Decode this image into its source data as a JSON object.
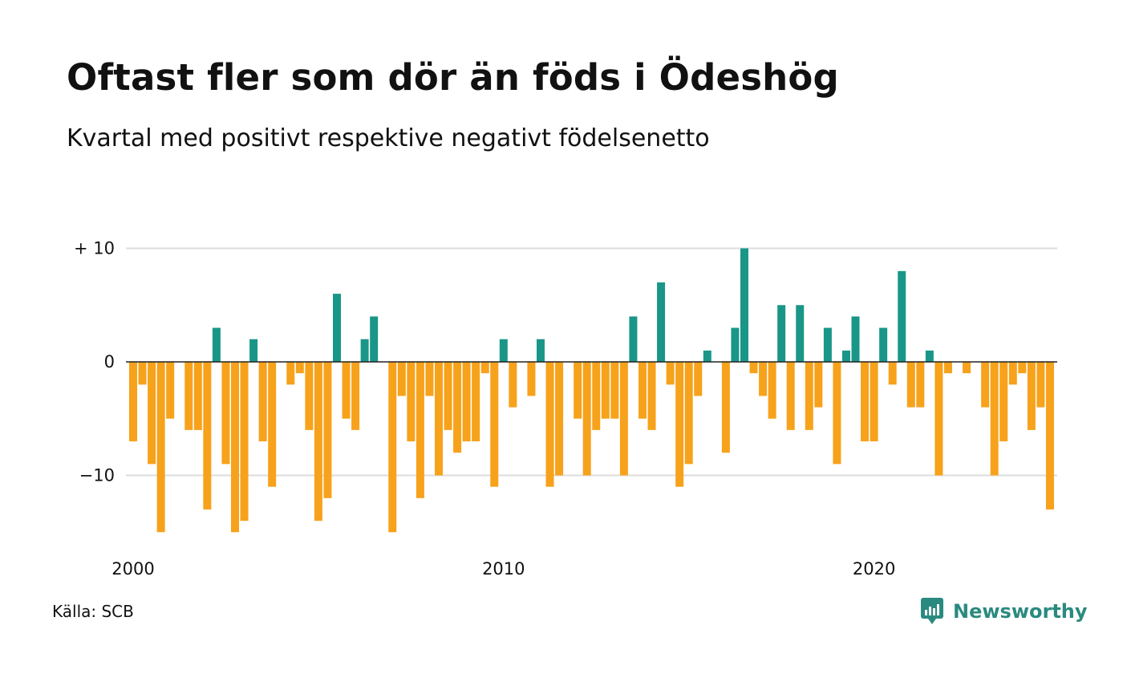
{
  "header": {
    "title": "Oftast fler som dör än föds i Ödeshög",
    "subtitle": "Kvartal med positivt respektive negativt födelsenetto"
  },
  "footer": {
    "source": "Källa: SCB",
    "brand": "Newsworthy"
  },
  "colors": {
    "positive": "#1a9688",
    "negative": "#f7a21b",
    "grid": "#dddddd",
    "zero_line": "#222222",
    "brand": "#2a8a80"
  },
  "chart_data": {
    "type": "bar",
    "x_start": "2000 Q1",
    "x_step": "quarter",
    "x_ticks": [
      "2000",
      "2010",
      "2020"
    ],
    "y_ticks": [
      {
        "value": 10,
        "label": "+ 10"
      },
      {
        "value": 0,
        "label": "0"
      },
      {
        "value": -10,
        "label": "−10"
      }
    ],
    "ylim": [
      -15,
      10
    ],
    "grid": true,
    "values": [
      -7,
      -2,
      -9,
      -15,
      -5,
      0,
      -6,
      -6,
      -13,
      3,
      -9,
      -15,
      -14,
      2,
      -7,
      -11,
      0,
      -2,
      -1,
      -6,
      -14,
      -12,
      6,
      -5,
      -6,
      2,
      4,
      0,
      -15,
      -3,
      -7,
      -12,
      -3,
      -10,
      -6,
      -8,
      -7,
      -7,
      -1,
      -11,
      2,
      -4,
      0,
      -3,
      2,
      -11,
      -10,
      0,
      -5,
      -10,
      -6,
      -5,
      -5,
      -10,
      4,
      -5,
      -6,
      7,
      -2,
      -11,
      -9,
      -3,
      1,
      0,
      -8,
      3,
      10,
      -1,
      -3,
      -5,
      5,
      -6,
      5,
      -6,
      -4,
      3,
      -9,
      1,
      4,
      -7,
      -7,
      3,
      -2,
      8,
      -4,
      -4,
      1,
      -10,
      -1,
      0,
      -1,
      0,
      -4,
      -10,
      -7,
      -2,
      -1,
      -6,
      -4,
      -13
    ]
  }
}
